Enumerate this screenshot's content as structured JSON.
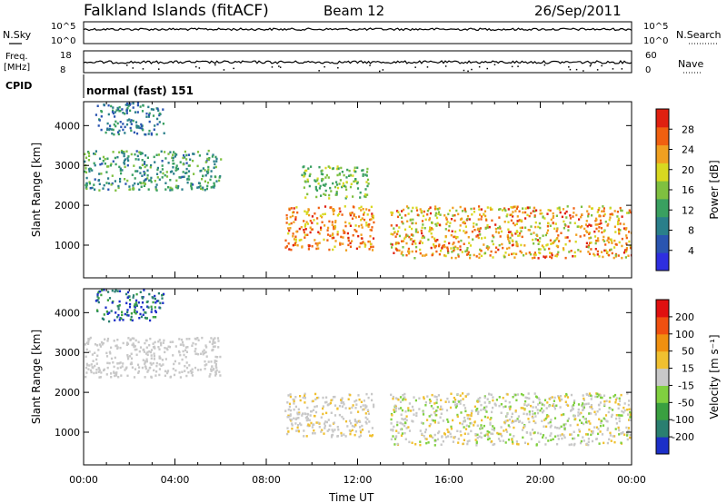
{
  "header": {
    "station": "Falkland Islands (fitACF)",
    "beam": "Beam 12",
    "date": "26/Sep/2011"
  },
  "colors": {
    "power_scale": [
      "#2e2ee0",
      "#2a55b0",
      "#2a7f8a",
      "#3aa060",
      "#7fc040",
      "#d8d820",
      "#f0a020",
      "#f06010",
      "#e02010"
    ],
    "velocity_scale": [
      "#1c2fc8",
      "#2a7f70",
      "#3aa040",
      "#80d040",
      "#c8c8c8",
      "#f0c030",
      "#f09010",
      "#f05010",
      "#e01010"
    ],
    "trace": "#000000"
  },
  "panels": {
    "nsky": {
      "left_label": "N.Sky",
      "ticks_left": [
        "10^5",
        "10^0"
      ],
      "ticks_right": [
        "10^5",
        "10^0"
      ],
      "right_label": "N.Search"
    },
    "freq": {
      "left_label_1": "Freq.",
      "left_label_2": "[MHz]",
      "ticks_left": [
        "18",
        "8"
      ],
      "ticks_right": [
        "60",
        "0"
      ],
      "right_label": "Nave"
    },
    "cpid": {
      "left_label": "CPID",
      "mode_text": "normal (fast) 151"
    }
  },
  "chart_data": [
    {
      "type": "heatmap",
      "title": "",
      "xlabel": "Time UT",
      "ylabel": "Slant Range [km]",
      "xlim": [
        0,
        24
      ],
      "ylim": [
        180,
        4600
      ],
      "x_ticks": [
        "00:00",
        "04:00",
        "08:00",
        "12:00",
        "16:00",
        "20:00",
        "00:00"
      ],
      "y_ticks": [
        "1000",
        "2000",
        "3000",
        "4000"
      ],
      "colorbar": {
        "label": "Power [dB]",
        "ticks": [
          "28",
          "24",
          "20",
          "16",
          "12",
          "8",
          "4"
        ],
        "range": [
          0,
          30
        ]
      },
      "data_gap_hours": [
        12.8,
        13.4
      ],
      "echo_regions": [
        {
          "name": "early-f-region",
          "start_h": 0.0,
          "end_h": 6.0,
          "range_km": [
            2400,
            3400
          ],
          "power_db": [
            6,
            16
          ]
        },
        {
          "name": "dawn-descending",
          "start_h": 8.8,
          "end_h": 12.7,
          "range_km": [
            900,
            2000
          ],
          "power_db": [
            18,
            28
          ]
        },
        {
          "name": "afternoon-band",
          "start_h": 13.4,
          "end_h": 24.0,
          "range_km": [
            700,
            2000
          ],
          "power_db": [
            14,
            28
          ]
        },
        {
          "name": "upper-echoes",
          "start_h": 9.5,
          "end_h": 12.5,
          "range_km": [
            2200,
            3000
          ],
          "power_db": [
            10,
            18
          ]
        },
        {
          "name": "early-high-range",
          "start_h": 0.5,
          "end_h": 3.5,
          "range_km": [
            3800,
            4600
          ],
          "power_db": [
            4,
            12
          ]
        }
      ]
    },
    {
      "type": "heatmap",
      "title": "",
      "xlabel": "Time UT",
      "ylabel": "Slant Range [km]",
      "xlim": [
        0,
        24
      ],
      "ylim": [
        180,
        4600
      ],
      "x_ticks": [
        "00:00",
        "04:00",
        "08:00",
        "12:00",
        "16:00",
        "20:00",
        "00:00"
      ],
      "y_ticks": [
        "1000",
        "2000",
        "3000",
        "4000"
      ],
      "colorbar": {
        "label": "Velocity [m s⁻¹]",
        "ticks": [
          "200",
          "100",
          "50",
          "15",
          "-15",
          "-50",
          "-100",
          "-200"
        ],
        "range": [
          -250,
          250
        ]
      },
      "data_gap_hours": [
        12.8,
        13.4
      ],
      "echo_regions": [
        {
          "name": "early-f-region",
          "start_h": 0.0,
          "end_h": 6.0,
          "range_km": [
            2400,
            3400
          ],
          "velocity_ms": [
            -15,
            15
          ]
        },
        {
          "name": "dawn-descending",
          "start_h": 8.8,
          "end_h": 12.7,
          "range_km": [
            900,
            2000
          ],
          "velocity_ms": [
            -15,
            50
          ]
        },
        {
          "name": "afternoon-band",
          "start_h": 13.4,
          "end_h": 24.0,
          "range_km": [
            700,
            2000
          ],
          "velocity_ms": [
            -50,
            50
          ]
        },
        {
          "name": "early-high-range",
          "start_h": 0.5,
          "end_h": 3.5,
          "range_km": [
            3800,
            4600
          ],
          "velocity_ms": [
            -250,
            -100
          ]
        }
      ]
    }
  ]
}
